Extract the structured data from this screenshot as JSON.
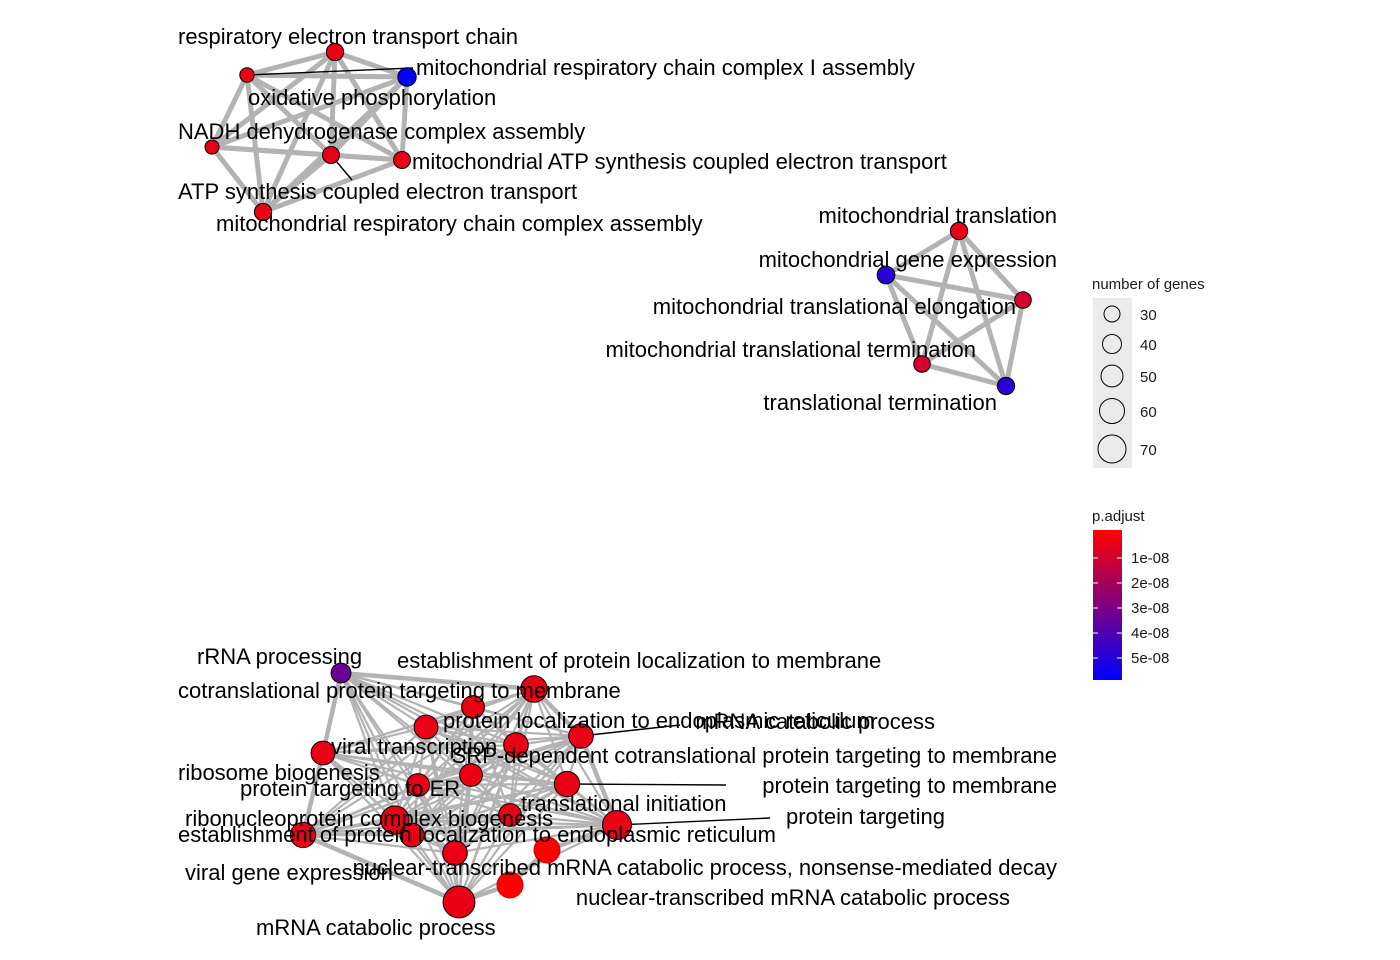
{
  "chart_data": {
    "type": "network",
    "title": "",
    "colors": {
      "low": "#ff0000",
      "high": "#0000ff",
      "edge": "#b3b3b3"
    },
    "nodes": [
      {
        "id": "respiratory electron transport chain",
        "genes": 30,
        "p_adjust": 5e-09
      },
      {
        "id": "mitochondrial respiratory chain complex I assembly",
        "genes": 33,
        "p_adjust": 6e-08
      },
      {
        "id": "oxidative phosphorylation",
        "genes": 22,
        "p_adjust": 5e-09
      },
      {
        "id": "NADH dehydrogenase complex assembly",
        "genes": 21,
        "p_adjust": 5e-09
      },
      {
        "id": "mitochondrial ATP synthesis coupled electron transport",
        "genes": 29,
        "p_adjust": 5e-09
      },
      {
        "id": "ATP synthesis coupled electron transport",
        "genes": 29,
        "p_adjust": 5e-09
      },
      {
        "id": "mitochondrial respiratory chain complex assembly",
        "genes": 30,
        "p_adjust": 5e-09
      },
      {
        "id": "mitochondrial translation",
        "genes": 30,
        "p_adjust": 5e-09
      },
      {
        "id": "mitochondrial gene expression",
        "genes": 31,
        "p_adjust": 5e-08
      },
      {
        "id": "mitochondrial translational elongation",
        "genes": 28,
        "p_adjust": 1e-08
      },
      {
        "id": "mitochondrial translational termination",
        "genes": 28,
        "p_adjust": 1e-08
      },
      {
        "id": "translational termination",
        "genes": 30,
        "p_adjust": 5e-08
      },
      {
        "id": "rRNA processing",
        "genes": 37,
        "p_adjust": 3.5e-08
      },
      {
        "id": "establishment of protein localization to membrane",
        "genes": 55,
        "p_adjust": 5e-09
      },
      {
        "id": "cotranslational protein targeting to membrane",
        "genes": 45,
        "p_adjust": 5e-09
      },
      {
        "id": "protein localization to endoplasmic reticulum",
        "genes": 48,
        "p_adjust": 5e-09
      },
      {
        "id": "nuclear-transcribed mRNA catabolic process",
        "genes": 50,
        "p_adjust": 5e-09
      },
      {
        "id": "viral transcription",
        "genes": 50,
        "p_adjust": 5e-09
      },
      {
        "id": "SRP-dependent cotranslational protein targeting to membrane",
        "genes": 45,
        "p_adjust": 5e-09
      },
      {
        "id": "ribosome biogenesis",
        "genes": 48,
        "p_adjust": 5e-09
      },
      {
        "id": "protein targeting to ER",
        "genes": 45,
        "p_adjust": 5e-09
      },
      {
        "id": "protein targeting to membrane",
        "genes": 52,
        "p_adjust": 5e-09
      },
      {
        "id": "translational initiation",
        "genes": 45,
        "p_adjust": 5e-09
      },
      {
        "id": "ribonucleoprotein complex biogenesis",
        "genes": 60,
        "p_adjust": 5e-09
      },
      {
        "id": "protein targeting",
        "genes": 62,
        "p_adjust": 5e-09
      },
      {
        "id": "establishment of protein localization to endoplasmic reticulum",
        "genes": 48,
        "p_adjust": 5e-09
      },
      {
        "id": "viral gene expression",
        "genes": 52,
        "p_adjust": 5e-09
      },
      {
        "id": "nuclear-transcribed mRNA catabolic process, nonsense-mediated decay",
        "genes": 50,
        "p_adjust": 5e-09
      },
      {
        "id": "mRNA catabolic process",
        "genes": 70,
        "p_adjust": 5e-09
      }
    ],
    "edges_strong": [
      [
        "respiratory electron transport chain",
        "mitochondrial respiratory chain complex I assembly"
      ],
      [
        "respiratory electron transport chain",
        "oxidative phosphorylation"
      ],
      [
        "respiratory electron transport chain",
        "NADH dehydrogenase complex assembly"
      ],
      [
        "respiratory electron transport chain",
        "mitochondrial ATP synthesis coupled electron transport"
      ],
      [
        "respiratory electron transport chain",
        "ATP synthesis coupled electron transport"
      ],
      [
        "respiratory electron transport chain",
        "mitochondrial respiratory chain complex assembly"
      ],
      [
        "mitochondrial respiratory chain complex I assembly",
        "oxidative phosphorylation"
      ],
      [
        "mitochondrial respiratory chain complex I assembly",
        "NADH dehydrogenase complex assembly"
      ],
      [
        "mitochondrial respiratory chain complex I assembly",
        "mitochondrial ATP synthesis coupled electron transport"
      ],
      [
        "mitochondrial respiratory chain complex I assembly",
        "ATP synthesis coupled electron transport"
      ],
      [
        "mitochondrial respiratory chain complex I assembly",
        "mitochondrial respiratory chain complex assembly"
      ],
      [
        "oxidative phosphorylation",
        "NADH dehydrogenase complex assembly"
      ],
      [
        "oxidative phosphorylation",
        "mitochondrial ATP synthesis coupled electron transport"
      ],
      [
        "oxidative phosphorylation",
        "ATP synthesis coupled electron transport"
      ],
      [
        "oxidative phosphorylation",
        "mitochondrial respiratory chain complex assembly"
      ],
      [
        "NADH dehydrogenase complex assembly",
        "ATP synthesis coupled electron transport"
      ],
      [
        "NADH dehydrogenase complex assembly",
        "mitochondrial respiratory chain complex assembly"
      ],
      [
        "NADH dehydrogenase complex assembly",
        "mitochondrial ATP synthesis coupled electron transport"
      ],
      [
        "mitochondrial ATP synthesis coupled electron transport",
        "ATP synthesis coupled electron transport"
      ],
      [
        "mitochondrial ATP synthesis coupled electron transport",
        "mitochondrial respiratory chain complex assembly"
      ],
      [
        "ATP synthesis coupled electron transport",
        "mitochondrial respiratory chain complex assembly"
      ],
      [
        "mitochondrial translation",
        "mitochondrial gene expression"
      ],
      [
        "mitochondrial translation",
        "mitochondrial translational elongation"
      ],
      [
        "mitochondrial translation",
        "mitochondrial translational termination"
      ],
      [
        "mitochondrial translation",
        "translational termination"
      ],
      [
        "mitochondrial gene expression",
        "mitochondrial translational elongation"
      ],
      [
        "mitochondrial gene expression",
        "mitochondrial translational termination"
      ],
      [
        "mitochondrial gene expression",
        "translational termination"
      ],
      [
        "mitochondrial translational elongation",
        "mitochondrial translational termination"
      ],
      [
        "mitochondrial translational elongation",
        "translational termination"
      ],
      [
        "mitochondrial translational termination",
        "translational termination"
      ]
    ],
    "cluster_dense": [
      "rRNA processing",
      "establishment of protein localization to membrane",
      "cotranslational protein targeting to membrane",
      "protein localization to endoplasmic reticulum",
      "nuclear-transcribed mRNA catabolic process",
      "viral transcription",
      "SRP-dependent cotranslational protein targeting to membrane",
      "ribosome biogenesis",
      "protein targeting to ER",
      "protein targeting to membrane",
      "translational initiation",
      "ribonucleoprotein complex biogenesis",
      "protein targeting",
      "establishment of protein localization to endoplasmic reticulum",
      "viral gene expression",
      "nuclear-transcribed mRNA catabolic process, nonsense-mediated decay",
      "mRNA catabolic process"
    ],
    "labels": [
      {
        "text": "respiratory electron transport chain",
        "node": "respiratory electron transport chain"
      },
      {
        "text": "mitochondrial respiratory chain complex I assembly",
        "node": "mitochondrial respiratory chain complex I assembly"
      },
      {
        "text": "oxidative phosphorylation",
        "node": "oxidative phosphorylation"
      },
      {
        "text": "NADH dehydrogenase complex assembly",
        "node": "NADH dehydrogenase complex assembly"
      },
      {
        "text": "mitochondrial ATP synthesis coupled electron transport",
        "node": "mitochondrial ATP synthesis coupled electron transport"
      },
      {
        "text": "ATP synthesis coupled electron transport",
        "node": "ATP synthesis coupled electron transport"
      },
      {
        "text": "mitochondrial respiratory chain complex assembly",
        "node": "mitochondrial respiratory chain complex assembly"
      },
      {
        "text": "mitochondrial translation",
        "node": "mitochondrial translation"
      },
      {
        "text": "mitochondrial gene expression",
        "node": "mitochondrial gene expression"
      },
      {
        "text": "mitochondrial translational elongation",
        "node": "mitochondrial translational elongation"
      },
      {
        "text": "mitochondrial translational termination",
        "node": "mitochondrial translational termination"
      },
      {
        "text": "translational termination",
        "node": "translational termination"
      },
      {
        "text": "rRNA processing",
        "node": "rRNA processing"
      },
      {
        "text": "establishment of protein localization to membrane",
        "node": "establishment of protein localization to membrane"
      },
      {
        "text": "cotranslational protein targeting to membrane",
        "node": "cotranslational protein targeting to membrane"
      },
      {
        "text": "protein localization to endoplasmic reticulum",
        "node": "protein localization to endoplasmic reticulum"
      },
      {
        "text": "mRNA catabolic process",
        "node": "nuclear-transcribed mRNA catabolic process",
        "partial": true
      },
      {
        "text": "viral transcription",
        "node": "viral transcription"
      },
      {
        "text": "SRP-dependent cotranslational protein targeting to membrane",
        "node": "SRP-dependent cotranslational protein targeting to membrane"
      },
      {
        "text": "ribosome biogenesis",
        "node": "ribosome biogenesis"
      },
      {
        "text": "protein targeting to ER",
        "node": "protein targeting to ER"
      },
      {
        "text": "protein targeting to membrane",
        "node": "protein targeting to membrane"
      },
      {
        "text": "translational initiation",
        "node": "translational initiation"
      },
      {
        "text": "ribonucleoprotein complex biogenesis",
        "node": "ribonucleoprotein complex biogenesis"
      },
      {
        "text": "protein targeting",
        "node": "protein targeting"
      },
      {
        "text": "establishment of protein localization to endoplasmic reticulum",
        "node": "establishment of protein localization to endoplasmic reticulum"
      },
      {
        "text": "viral gene expression",
        "node": "viral gene expression"
      },
      {
        "text": "nuclear-transcribed mRNA catabolic process, nonsense-mediated decay",
        "node": "nuclear-transcribed mRNA catabolic process, nonsense-mediated decay"
      },
      {
        "text": "nuclear-transcribed mRNA catabolic process",
        "node": "nuclear-transcribed mRNA catabolic process"
      },
      {
        "text": "mRNA catabolic process",
        "node": "mRNA catabolic process"
      }
    ],
    "legend_size": {
      "title": "number of genes",
      "entries": [
        30,
        40,
        50,
        60,
        70
      ]
    },
    "legend_color": {
      "title": "p.adjust",
      "range": [
        0,
        6e-08
      ],
      "ticks": [
        {
          "value": 1e-08,
          "label": "1e-08"
        },
        {
          "value": 2e-08,
          "label": "2e-08"
        },
        {
          "value": 3e-08,
          "label": "3e-08"
        },
        {
          "value": 4e-08,
          "label": "4e-08"
        },
        {
          "value": 5e-08,
          "label": "5e-08"
        }
      ]
    }
  }
}
